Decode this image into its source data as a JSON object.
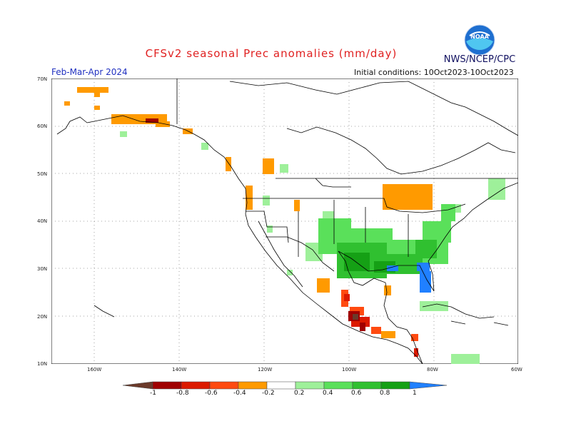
{
  "title": "CFSv2 seasonal Prec anomalies (mm/day)",
  "org": "NWS/NCEP/CPC",
  "logo_text": "NOAA",
  "period": "Feb-Mar-Apr 2024",
  "initial_conditions": "Initial conditions: 10Oct2023-10Oct2023",
  "lat_labels": [
    "70N",
    "60N",
    "50N",
    "40N",
    "30N",
    "20N",
    "10N"
  ],
  "lon_labels": [
    "160W",
    "140W",
    "120W",
    "100W",
    "80W",
    "60W"
  ],
  "colorbar": {
    "labels": [
      "-1",
      "-0.8",
      "-0.6",
      "-0.4",
      "-0.2",
      "0.2",
      "0.4",
      "0.6",
      "0.8",
      "1"
    ],
    "colors": [
      "#6b3a2a",
      "#a00000",
      "#dc1a00",
      "#ff4a10",
      "#ff9a00",
      "#ffffff",
      "#9ef09a",
      "#5ae05a",
      "#30c030",
      "#15a015",
      "#2080ff"
    ]
  },
  "colors": {
    "dry_weak": "#ff9a00",
    "dry_mod": "#ff4a10",
    "dry_strong": "#dc1a00",
    "dry_extreme": "#a00000",
    "dry_max": "#6b3a2a",
    "wet_weak": "#9ef09a",
    "wet_mod": "#5ae05a",
    "wet_strong": "#30c030",
    "wet_vstrong": "#15a015",
    "wet_max": "#2080ff"
  }
}
